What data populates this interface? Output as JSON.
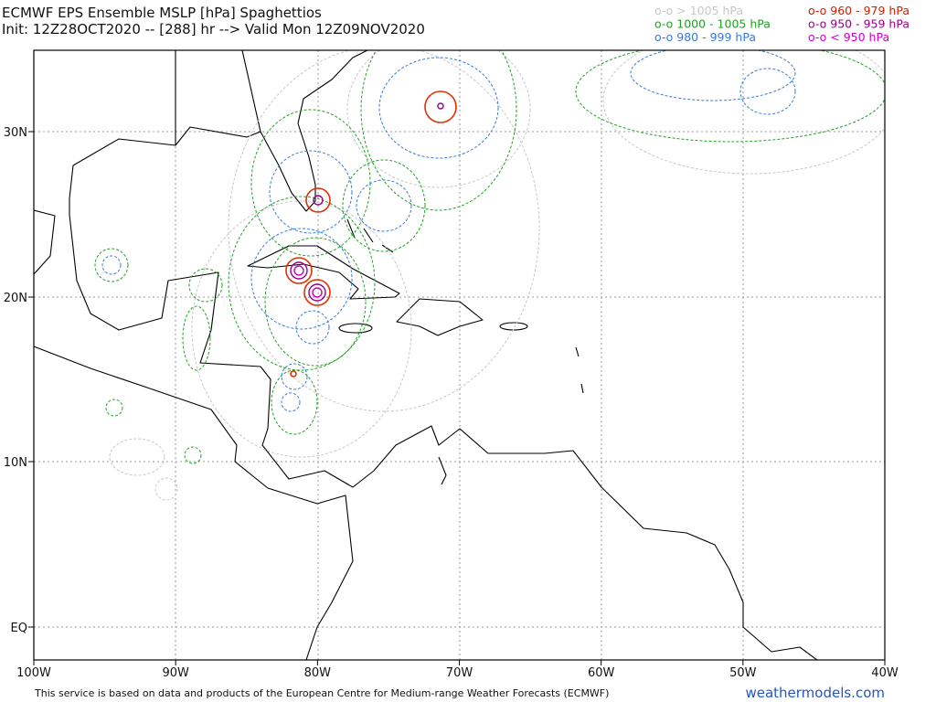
{
  "header": {
    "title": "ECMWF EPS Ensemble MSLP [hPa] Spaghettios",
    "subtitle": "Init: 12Z28OCT2020 -- [288] hr --> Valid Mon 12Z09NOV2020"
  },
  "legend": [
    {
      "symbol": "o-o",
      "label": "> 1005 hPa",
      "color": "#c8c8c8"
    },
    {
      "symbol": "o-o",
      "label": "1000 - 1005 hPa",
      "color": "#22a022"
    },
    {
      "symbol": "o-o",
      "label": "980 - 999 hPa",
      "color": "#3a7ad8"
    },
    {
      "symbol": "o-o",
      "label": "960 - 979 hPa",
      "color": "#cc2200"
    },
    {
      "symbol": "o-o",
      "label": "950 - 959 hPa",
      "color": "#990088"
    },
    {
      "symbol": "o-o",
      "label": "< 950 hPa",
      "color": "#cc00cc"
    }
  ],
  "map": {
    "lat_labels": [
      "30N",
      "20N",
      "10N",
      "EQ"
    ],
    "lon_labels": [
      "100W",
      "90W",
      "80W",
      "70W",
      "60W",
      "50W",
      "40W"
    ]
  },
  "footer": {
    "credit": "This service is based on data and products of the European Centre for Medium-range Weather Forecasts (ECMWF)",
    "site": "weathermodels.com"
  }
}
